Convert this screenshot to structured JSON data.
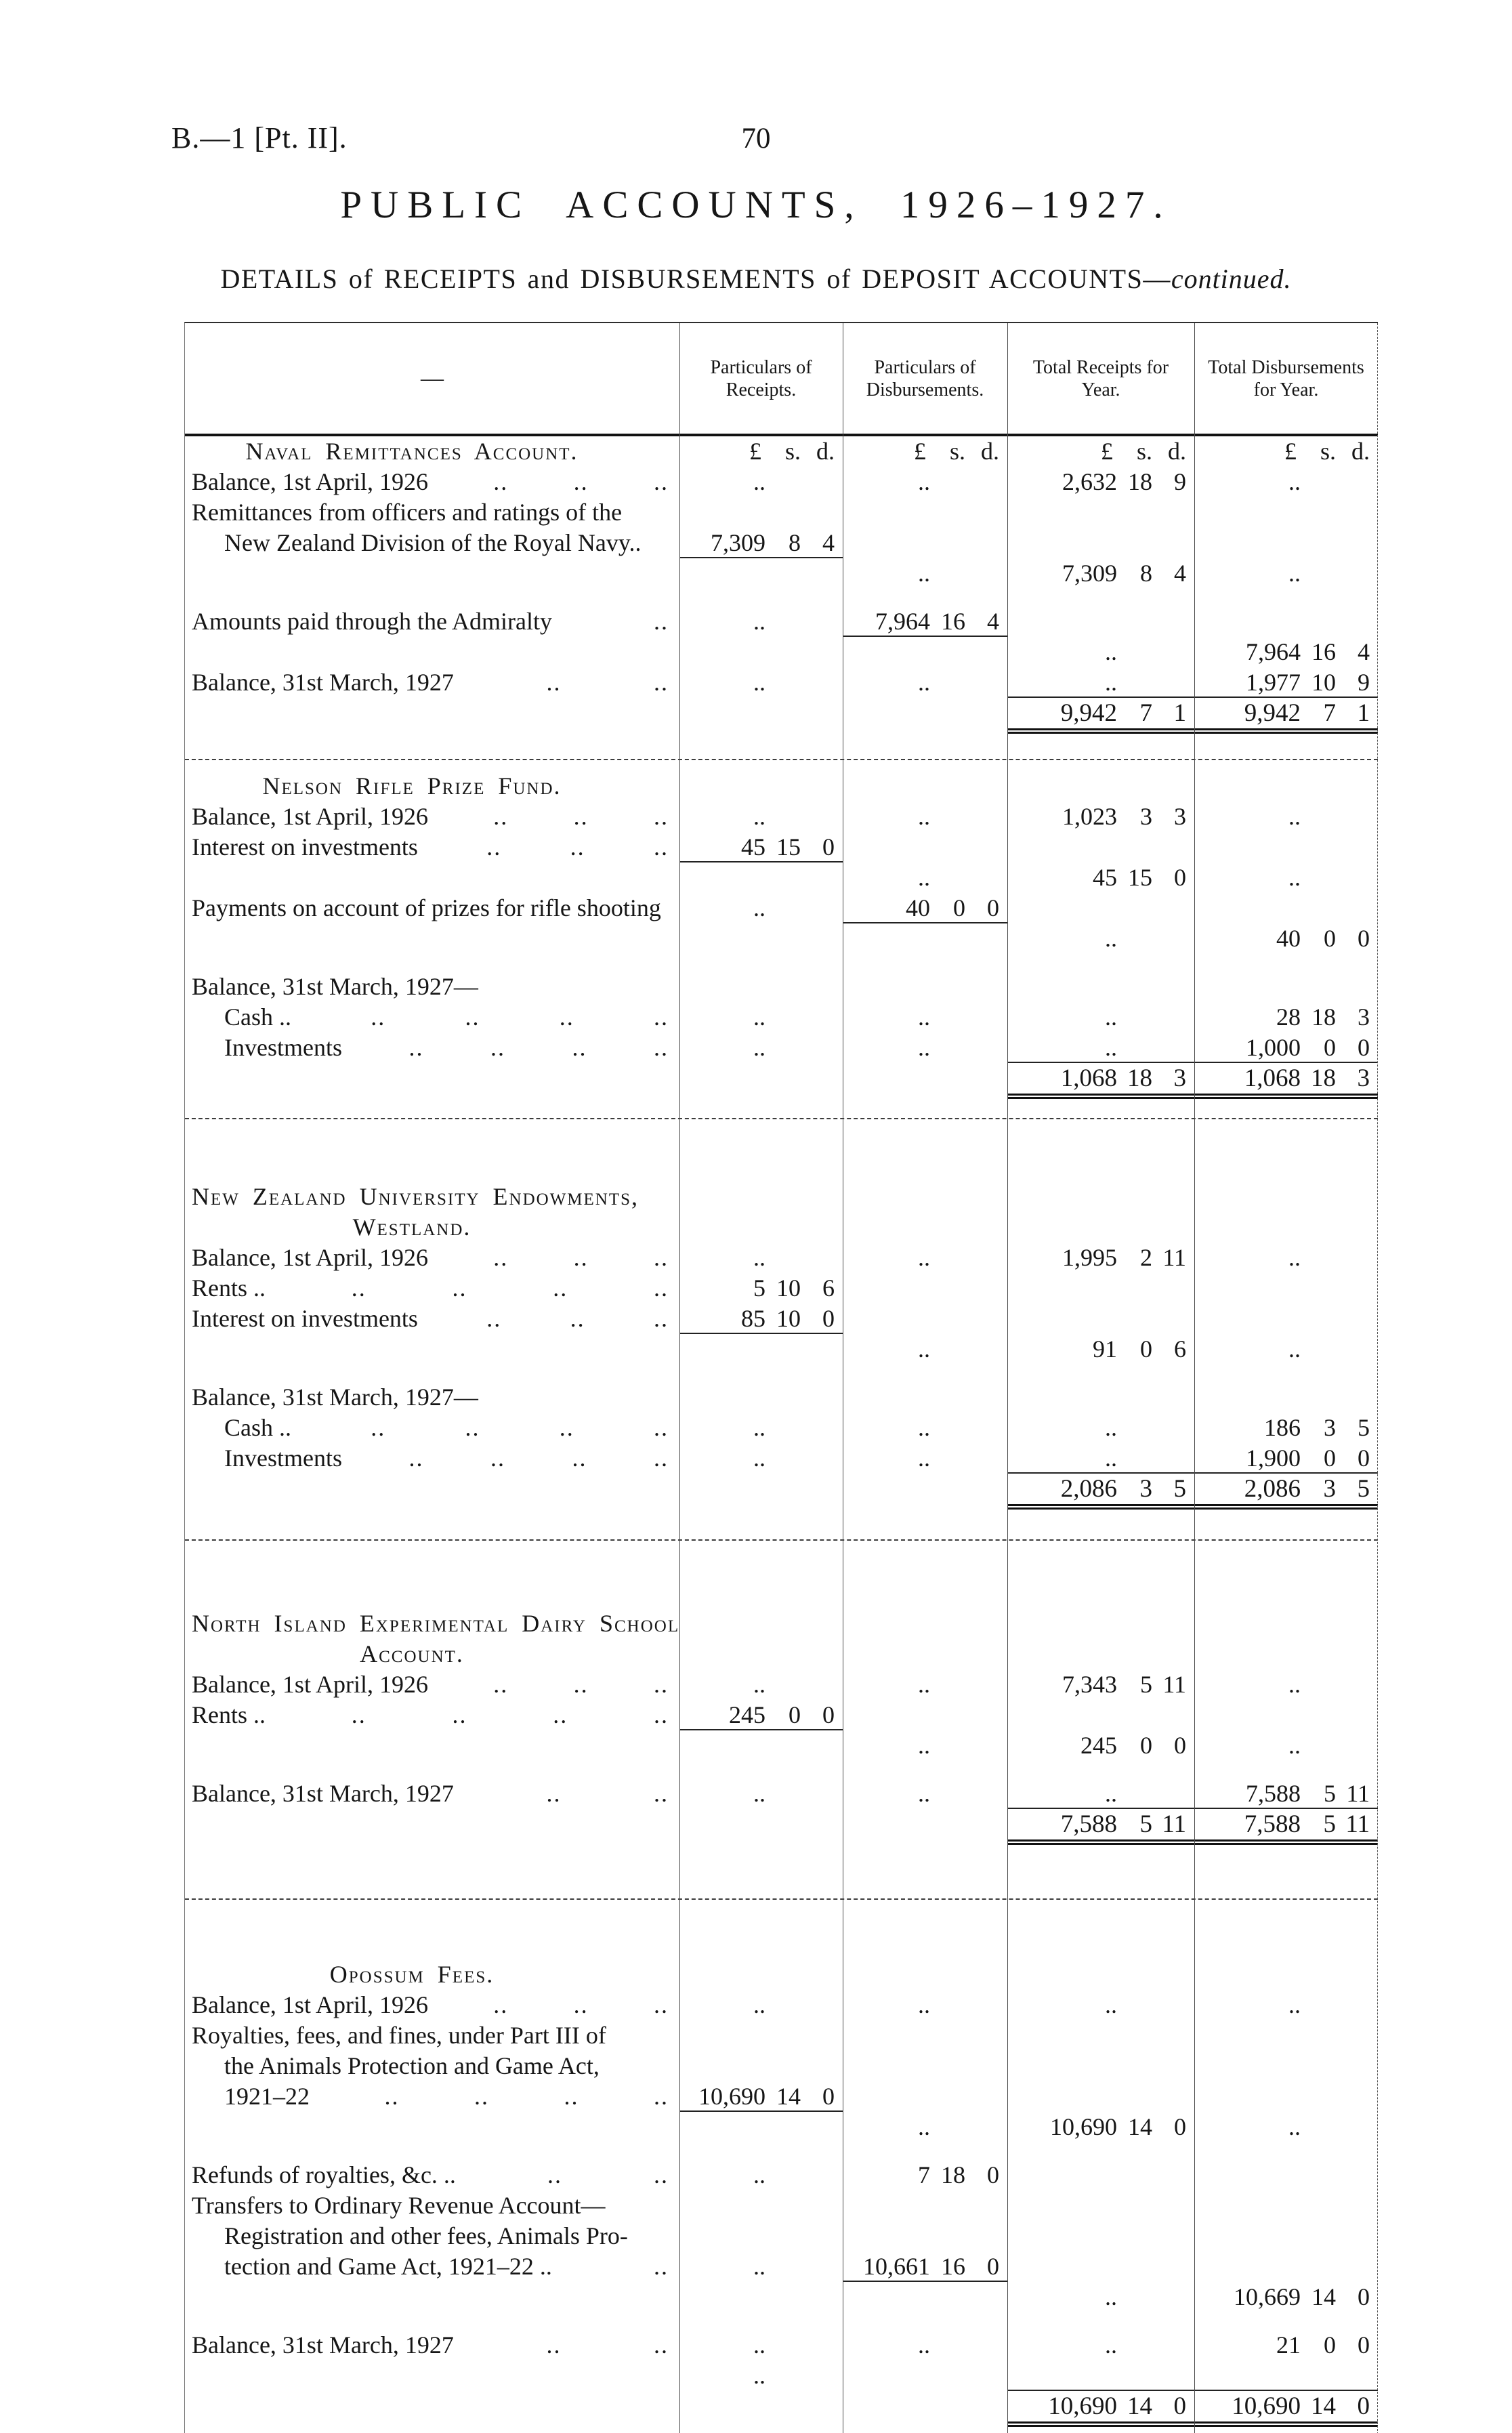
{
  "page": {
    "doc_ref": "B.—1 [Pt. II].",
    "page_number": "70",
    "title": "PUBLIC ACCOUNTS, 1926–1927.",
    "subtitle": "DETAILS of RECEIPTS and DISBURSEMENTS of DEPOSIT ACCOUNTS",
    "subtitle_dash": "—",
    "subtitle_continued": "continued."
  },
  "table": {
    "stub_header": "—",
    "col_headers": [
      "Particulars of Receipts.",
      "Particulars of Disbursements.",
      "Total Receipts for Year.",
      "Total Disbursements for Year."
    ],
    "currency": {
      "pounds": "£",
      "shillings": "s.",
      "pence": "d."
    },
    "sections": [
      {
        "heading": [
          "Naval Remittances Account."
        ],
        "rows": [
          {
            "k": "row",
            "t": "Balance, 1st April, 1926",
            "dots": 3,
            "r": "..",
            "d": "..",
            "tr": "2,632 18 9",
            "td": ".."
          },
          {
            "k": "row",
            "t": "Remittances from officers and ratings of the"
          },
          {
            "k": "row",
            "ind": 1,
            "t": "New Zealand Division of the Royal Navy..",
            "r": "7,309 8 4",
            "ra": [
              "r"
            ]
          },
          {
            "k": "spacer",
            "d": "..",
            "tr": "7,309 8 4",
            "td": ".."
          },
          {
            "k": "row",
            "t": "Amounts paid through the Admiralty",
            "dots": 1,
            "r": "..",
            "d": "7,964 16 4",
            "ra": [
              "d"
            ],
            "gap": true
          },
          {
            "k": "spacer",
            "tr": "..",
            "td": "7,964 16 4"
          },
          {
            "k": "row",
            "t": "Balance, 31st March, 1927",
            "dots": 2,
            "r": "..",
            "d": "..",
            "tr": "..",
            "td": "1,977 10 9",
            "ra": [
              "tr",
              "td"
            ]
          },
          {
            "k": "totals",
            "tr": "9,942 7 1",
            "td": "9,942 7 1",
            "da": [
              "tr",
              "td"
            ]
          }
        ]
      },
      {
        "heading": [
          "Nelson Rifle Prize Fund."
        ],
        "rows": [
          {
            "k": "row",
            "t": "Balance, 1st April, 1926",
            "dots": 3,
            "r": "..",
            "d": "..",
            "tr": "1,023 3 3",
            "td": ".."
          },
          {
            "k": "row",
            "t": "Interest on investments",
            "dots": 3,
            "r": "45 15 0",
            "ra": [
              "r"
            ]
          },
          {
            "k": "spacer",
            "d": "..",
            "tr": "45 15 0",
            "td": ".."
          },
          {
            "k": "row",
            "t": "Payments on account of prizes for rifle shooting",
            "r": "..",
            "d": "40 0 0",
            "ra": [
              "d"
            ]
          },
          {
            "k": "spacer",
            "tr": "..",
            "td": "40 0 0"
          },
          {
            "k": "row",
            "t": "Balance, 31st March, 1927—",
            "gap": true
          },
          {
            "k": "row",
            "ind": 1,
            "t": "Cash ..",
            "dots": 4,
            "r": "..",
            "d": "..",
            "tr": "..",
            "td": "28 18 3"
          },
          {
            "k": "row",
            "ind": 1,
            "t": "Investments",
            "dots": 4,
            "r": "..",
            "d": "..",
            "tr": "..",
            "td": "1,000 0 0",
            "ra": [
              "tr",
              "td"
            ]
          },
          {
            "k": "totals",
            "tr": "1,068 18 3",
            "td": "1,068 18 3",
            "da": [
              "tr",
              "td"
            ]
          }
        ]
      },
      {
        "heading": [
          "New Zealand University Endowments,",
          "Westland."
        ],
        "rows": [
          {
            "k": "row",
            "t": "Balance, 1st April, 1926",
            "dots": 3,
            "r": "..",
            "d": "..",
            "tr": "1,995 2 11",
            "td": ".."
          },
          {
            "k": "row",
            "t": "Rents ..",
            "dots": 4,
            "r": "5 10 6"
          },
          {
            "k": "row",
            "t": "Interest on investments",
            "dots": 3,
            "r": "85 10 0",
            "ra": [
              "r"
            ]
          },
          {
            "k": "spacer",
            "d": "..",
            "tr": "91 0 6",
            "td": ".."
          },
          {
            "k": "row",
            "t": "Balance, 31st March, 1927—",
            "gap": true
          },
          {
            "k": "row",
            "ind": 1,
            "t": "Cash ..",
            "dots": 4,
            "r": "..",
            "d": "..",
            "tr": "..",
            "td": "186 3 5"
          },
          {
            "k": "row",
            "ind": 1,
            "t": "Investments",
            "dots": 4,
            "r": "..",
            "d": "..",
            "tr": "..",
            "td": "1,900 0 0",
            "ra": [
              "tr",
              "td"
            ]
          },
          {
            "k": "totals",
            "tr": "2,086 3 5",
            "td": "2,086 3 5",
            "da": [
              "tr",
              "td"
            ]
          }
        ]
      },
      {
        "heading": [
          "North Island Experimental Dairy School",
          "Account."
        ],
        "rows": [
          {
            "k": "row",
            "t": "Balance, 1st April, 1926",
            "dots": 3,
            "r": "..",
            "d": "..",
            "tr": "7,343 5 11",
            "td": ".."
          },
          {
            "k": "row",
            "t": "Rents ..",
            "dots": 4,
            "r": "245 0 0",
            "ra": [
              "r"
            ]
          },
          {
            "k": "spacer",
            "d": "..",
            "tr": "245 0 0",
            "td": ".."
          },
          {
            "k": "row",
            "t": "Balance, 31st March, 1927",
            "dots": 2,
            "r": "..",
            "d": "..",
            "tr": "..",
            "td": "7,588 5 11",
            "ra": [
              "tr",
              "td"
            ],
            "gap": true
          },
          {
            "k": "totals",
            "tr": "7,588 5 11",
            "td": "7,588 5 11",
            "da": [
              "tr",
              "td"
            ]
          }
        ]
      },
      {
        "heading": [
          "Opossum Fees."
        ],
        "rows": [
          {
            "k": "row",
            "t": "Balance, 1st April, 1926",
            "dots": 3,
            "r": "..",
            "d": "..",
            "tr": "..",
            "td": ".."
          },
          {
            "k": "row",
            "t": "Royalties, fees, and fines, under Part III of"
          },
          {
            "k": "row",
            "ind": 1,
            "t": "the Animals Protection and Game Act,"
          },
          {
            "k": "row",
            "ind": 1,
            "t": "1921–22",
            "dots": 4,
            "r": "10,690 14 0",
            "ra": [
              "r"
            ]
          },
          {
            "k": "spacer",
            "d": "..",
            "tr": "10,690 14 0",
            "td": ".."
          },
          {
            "k": "row",
            "t": "Refunds of royalties, &c. ..",
            "dots": 2,
            "r": "..",
            "d": "7 18 0",
            "gap": true
          },
          {
            "k": "row",
            "t": "Transfers to Ordinary Revenue Account—"
          },
          {
            "k": "row",
            "ind": 1,
            "t": "Registration and other fees, Animals Pro-"
          },
          {
            "k": "row",
            "ind": 1,
            "t": "tection and Game Act, 1921–22 ..",
            "dots": 1,
            "r": "..",
            "d": "10,661 16 0",
            "ra": [
              "d"
            ]
          },
          {
            "k": "spacer",
            "tr": "..",
            "td": "10,669 14 0"
          },
          {
            "k": "row",
            "t": "Balance, 31st March, 1927",
            "dots": 2,
            "r": "..",
            "d": "..",
            "tr": "..",
            "td": "21 0 0",
            "gap": true
          },
          {
            "k": "spacer",
            "r": "..",
            "ra": [
              "tr",
              "td"
            ]
          },
          {
            "k": "totals",
            "tr": "10,690 14 0",
            "td": "10,690 14 0",
            "da": [
              "tr",
              "td"
            ]
          }
        ]
      }
    ]
  }
}
